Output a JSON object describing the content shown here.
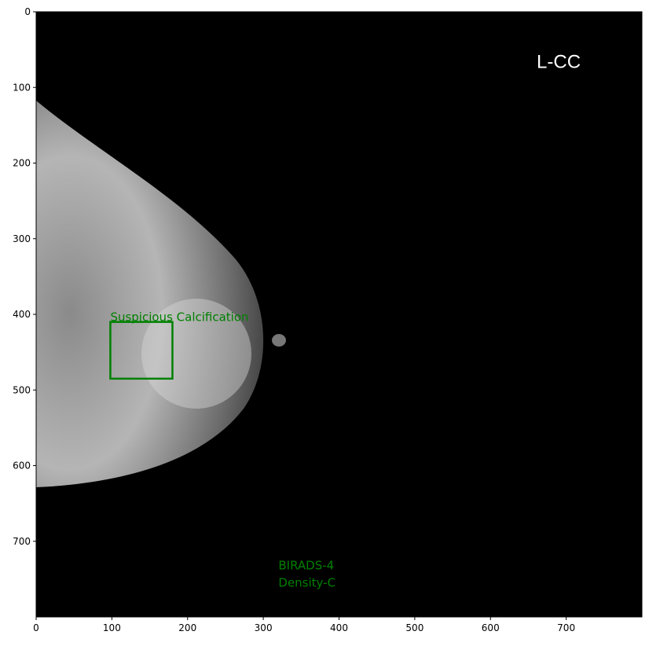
{
  "chart_data": {
    "type": "image",
    "xlim": [
      0,
      800
    ],
    "ylim": [
      800,
      0
    ],
    "xticks": [
      0,
      100,
      200,
      300,
      400,
      500,
      600,
      700
    ],
    "yticks": [
      0,
      100,
      200,
      300,
      400,
      500,
      600,
      700
    ],
    "view_label": {
      "text": "L-CC",
      "x": 661,
      "y": 66,
      "color": "#ffffff"
    },
    "boxes": [
      {
        "label": "Suspicious Calcification",
        "x0": 98,
        "y0": 410,
        "x1": 180,
        "y1": 485,
        "color": "#008000"
      }
    ],
    "annotations": [
      {
        "text": "BIRADS-4",
        "x": 320,
        "y": 732,
        "color": "#008000"
      },
      {
        "text": "Density-C",
        "x": 320,
        "y": 755,
        "color": "#008000"
      }
    ]
  }
}
